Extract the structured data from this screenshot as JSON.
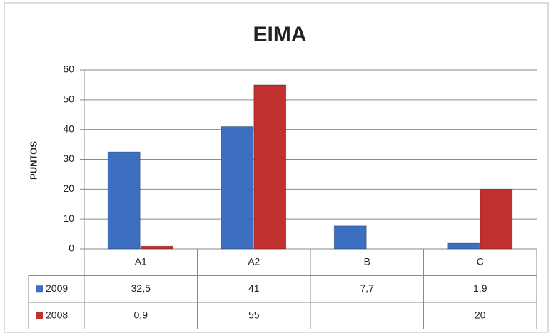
{
  "chart_data": {
    "type": "bar",
    "title": "EIMA",
    "y_label": "PUNTOS",
    "categories": [
      "A1",
      "A2",
      "B",
      "C"
    ],
    "series": [
      {
        "name": "2009",
        "color": "#3c6fc0",
        "values": [
          32.5,
          41,
          7.7,
          1.9
        ],
        "value_labels": [
          "32,5",
          "41",
          "7,7",
          "1,9"
        ]
      },
      {
        "name": "2008",
        "color": "#c0302e",
        "values": [
          0.9,
          55,
          null,
          20
        ],
        "value_labels": [
          "0,9",
          "55",
          null,
          "20"
        ]
      }
    ],
    "ylim": [
      0,
      60
    ],
    "yticks": [
      0,
      10,
      20,
      30,
      40,
      50,
      60
    ],
    "grid": true
  }
}
